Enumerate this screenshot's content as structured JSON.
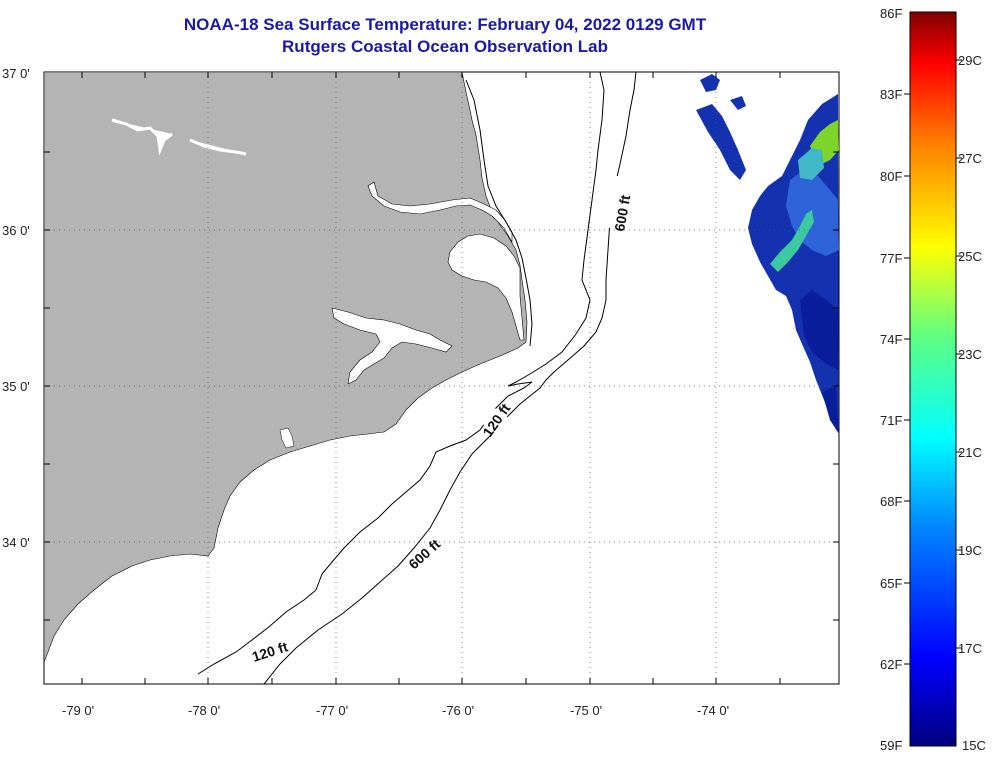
{
  "title": {
    "line1": "NOAA-18 Sea Surface Temperature:  February 04, 2022 0129 GMT",
    "line2": "Rutgers Coastal Ocean Observation Lab"
  },
  "axes": {
    "lat_labels": [
      "37 0'",
      "36 0'",
      "35 0'",
      "34 0'"
    ],
    "lon_labels": [
      "-79 0'",
      "-78 0'",
      "-77 0'",
      "-76 0'",
      "-75 0'",
      "-74 0'"
    ]
  },
  "contours": {
    "shelf_120": "120 ft",
    "shelf_600": "600 ft",
    "upper_600": "600 ft",
    "lower_120": "120 ft"
  },
  "colorbar": {
    "fahrenheit": [
      "86F",
      "83F",
      "80F",
      "77F",
      "74F",
      "71F",
      "68F",
      "65F",
      "62F",
      "59F"
    ],
    "celsius": [
      "29C",
      "27C",
      "25C",
      "23C",
      "21C",
      "19C",
      "17C",
      "15C"
    ]
  },
  "colors": {
    "land": "#b4b4b4",
    "title": "#1a1aa6",
    "sst_cold": "#0a1e9c",
    "sst_warm": "#7fd42a"
  }
}
